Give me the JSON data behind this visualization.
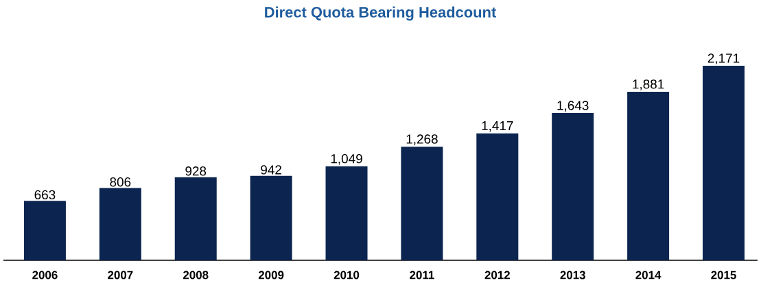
{
  "chart_data": {
    "type": "bar",
    "title": "Direct Quota Bearing Headcount",
    "categories": [
      "2006",
      "2007",
      "2008",
      "2009",
      "2010",
      "2011",
      "2012",
      "2013",
      "2014",
      "2015"
    ],
    "values": [
      663,
      806,
      928,
      942,
      1049,
      1268,
      1417,
      1643,
      1881,
      2171
    ],
    "value_labels": [
      "663",
      "806",
      "928",
      "942",
      "1,049",
      "1,268",
      "1,417",
      "1,643",
      "1,881",
      "2,171"
    ],
    "color": "#0b2550"
  }
}
